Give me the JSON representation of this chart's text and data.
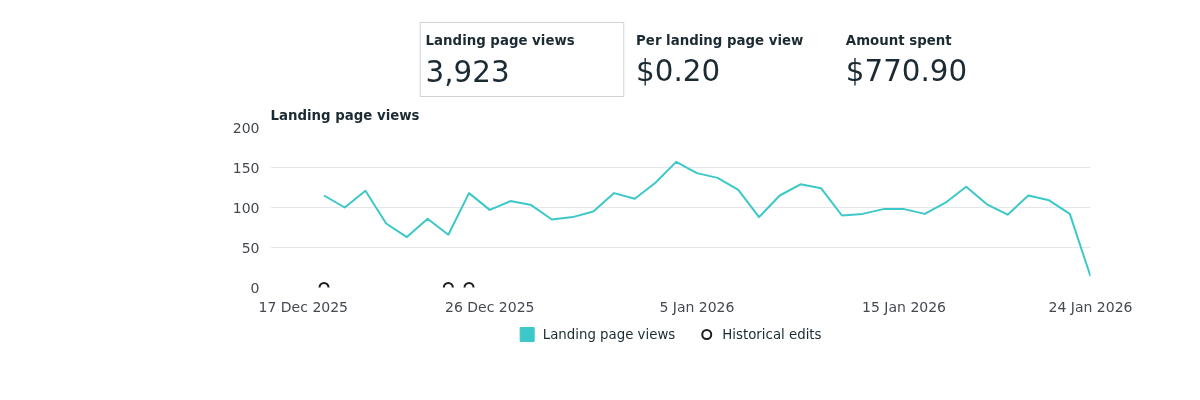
{
  "chart_data": [
    {
      "type": "other",
      "annotations": [
        "Landing page views",
        "3,923",
        "Per landing page view",
        "$0.20",
        "Amount spent",
        "$770.90"
      ]
    },
    {
      "type": "line",
      "title": "Landing page views",
      "x": [
        "2025-12-18",
        "2025-12-19",
        "2025-12-20",
        "2025-12-21",
        "2025-12-22",
        "2025-12-23",
        "2025-12-24",
        "2025-12-25",
        "2025-12-26",
        "2025-12-27",
        "2025-12-28",
        "2025-12-29",
        "2025-12-30",
        "2025-12-31",
        "2026-01-01",
        "2026-01-02",
        "2026-01-03",
        "2026-01-04",
        "2026-01-05",
        "2026-01-06",
        "2026-01-07",
        "2026-01-08",
        "2026-01-09",
        "2026-01-10",
        "2026-01-11",
        "2026-01-12",
        "2026-01-13",
        "2026-01-14",
        "2026-01-15",
        "2026-01-16",
        "2026-01-17",
        "2026-01-18",
        "2026-01-19",
        "2026-01-20",
        "2026-01-21",
        "2026-01-22",
        "2026-01-23",
        "2026-01-24"
      ],
      "series": [
        {
          "name": "Landing page views",
          "color": "#3cc8c8",
          "values": [
            115,
            100,
            121,
            80,
            63,
            86,
            66,
            118,
            97,
            108,
            103,
            85,
            88,
            95,
            118,
            111,
            131,
            157,
            143,
            137,
            122,
            88,
            115,
            129,
            124,
            90,
            92,
            98,
            98,
            92,
            106,
            126,
            104,
            91,
            115,
            109,
            92,
            14
          ]
        },
        {
          "name": "Historical edits",
          "type": "scatter",
          "marker": "circle",
          "color": "#1c1e21",
          "x": [
            "2025-12-18",
            "2025-12-24",
            "2025-12-25"
          ],
          "values": [
            0,
            0,
            0
          ]
        }
      ],
      "xlim": [
        "2025-12-15T10:00",
        "2026-01-24T00:00"
      ],
      "xticks": [
        {
          "value": "2025-12-17",
          "label": "17 Dec 2025"
        },
        {
          "value": "2025-12-26",
          "label": "26 Dec 2025"
        },
        {
          "value": "2026-01-05",
          "label": "5 Jan 2026"
        },
        {
          "value": "2026-01-15",
          "label": "15 Jan 2026"
        },
        {
          "value": "2026-01-24",
          "label": "24 Jan 2026"
        }
      ],
      "ylim": [
        0,
        200
      ],
      "yticks": [
        0,
        50,
        100,
        150,
        200
      ],
      "grid": "y",
      "legend": "bottom",
      "marker": "none"
    }
  ]
}
